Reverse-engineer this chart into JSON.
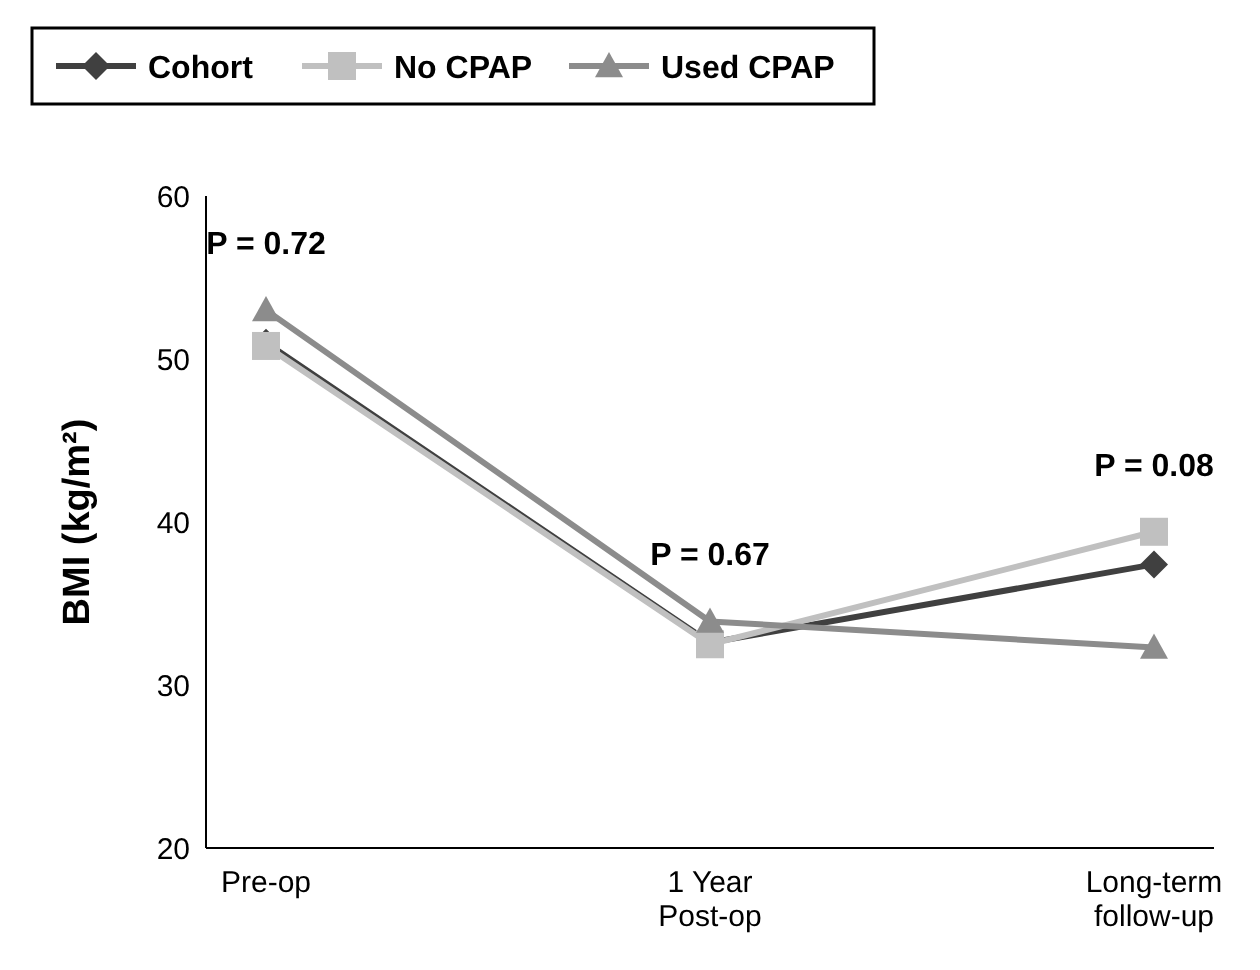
{
  "chart_data": {
    "type": "line",
    "ylabel": "BMI (kg/m²)",
    "categories": [
      "Pre-op",
      "1 Year\nPost-op",
      "Long-term\nfollow-up"
    ],
    "series": [
      {
        "name": "Cohort",
        "color": "#404040",
        "marker": "diamond",
        "values": [
          51,
          32.6,
          37.4
        ]
      },
      {
        "name": "No CPAP",
        "color": "#c0c0c0",
        "marker": "square",
        "values": [
          50.8,
          32.5,
          39.4
        ]
      },
      {
        "name": "Used CPAP",
        "color": "#8c8c8c",
        "marker": "triangle",
        "values": [
          53,
          33.9,
          32.3
        ]
      }
    ],
    "ylim": [
      20,
      60
    ],
    "yticks": [
      20,
      30,
      40,
      50,
      60
    ],
    "grid": false,
    "legend": "top left",
    "annotations": [
      "P = 0.72",
      "P = 0.67",
      "P = 0.08"
    ]
  }
}
